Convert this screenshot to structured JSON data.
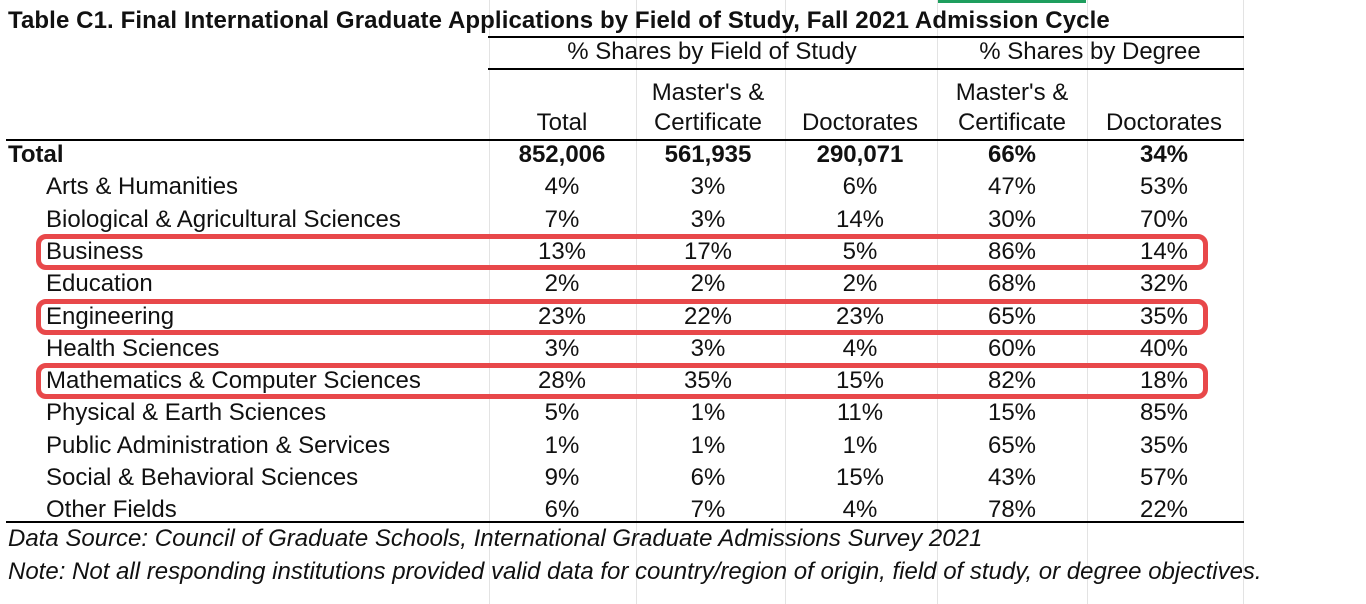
{
  "title": "Table C1. Final International Graduate Applications by Field of Study,  Fall 2021 Admission Cycle",
  "group_headers": {
    "field": "% Shares by Field of Study",
    "degree": "% Shares by Degree"
  },
  "column_headers": [
    {
      "line1": "",
      "line2": "Total"
    },
    {
      "line1": "Master's &",
      "line2": "Certificate"
    },
    {
      "line1": "",
      "line2": "Doctorates"
    },
    {
      "line1": "Master's &",
      "line2": "Certificate"
    },
    {
      "line1": "",
      "line2": "Doctorates"
    }
  ],
  "total_row": {
    "label": "Total",
    "values": [
      "852,006",
      "561,935",
      "290,071",
      "66%",
      "34%"
    ]
  },
  "rows": [
    {
      "label": "Arts & Humanities",
      "values": [
        "4%",
        "3%",
        "6%",
        "47%",
        "53%"
      ]
    },
    {
      "label": "Biological & Agricultural Sciences",
      "values": [
        "7%",
        "3%",
        "14%",
        "30%",
        "70%"
      ]
    },
    {
      "label": "Business",
      "values": [
        "13%",
        "17%",
        "5%",
        "86%",
        "14%"
      ]
    },
    {
      "label": "Education",
      "values": [
        "2%",
        "2%",
        "2%",
        "68%",
        "32%"
      ]
    },
    {
      "label": "Engineering",
      "values": [
        "23%",
        "22%",
        "23%",
        "65%",
        "35%"
      ]
    },
    {
      "label": "Health Sciences",
      "values": [
        "3%",
        "3%",
        "4%",
        "60%",
        "40%"
      ]
    },
    {
      "label": "Mathematics & Computer Sciences",
      "values": [
        "28%",
        "35%",
        "15%",
        "82%",
        "18%"
      ]
    },
    {
      "label": "Physical & Earth Sciences",
      "values": [
        "5%",
        "1%",
        "11%",
        "15%",
        "85%"
      ]
    },
    {
      "label": "Public Administration & Services",
      "values": [
        "1%",
        "1%",
        "1%",
        "65%",
        "35%"
      ]
    },
    {
      "label": "Social & Behavioral Sciences",
      "values": [
        "9%",
        "6%",
        "15%",
        "43%",
        "57%"
      ]
    },
    {
      "label": "Other Fields",
      "values": [
        "6%",
        "7%",
        "4%",
        "78%",
        "22%"
      ]
    }
  ],
  "highlight_color": "#e8484a",
  "source_note": "Data Source: Council of Graduate Schools, International Graduate Admissions Survey 2021",
  "note": "Note: Not all responding institutions provided valid data for country/region of origin, field of study, or degree objectives."
}
